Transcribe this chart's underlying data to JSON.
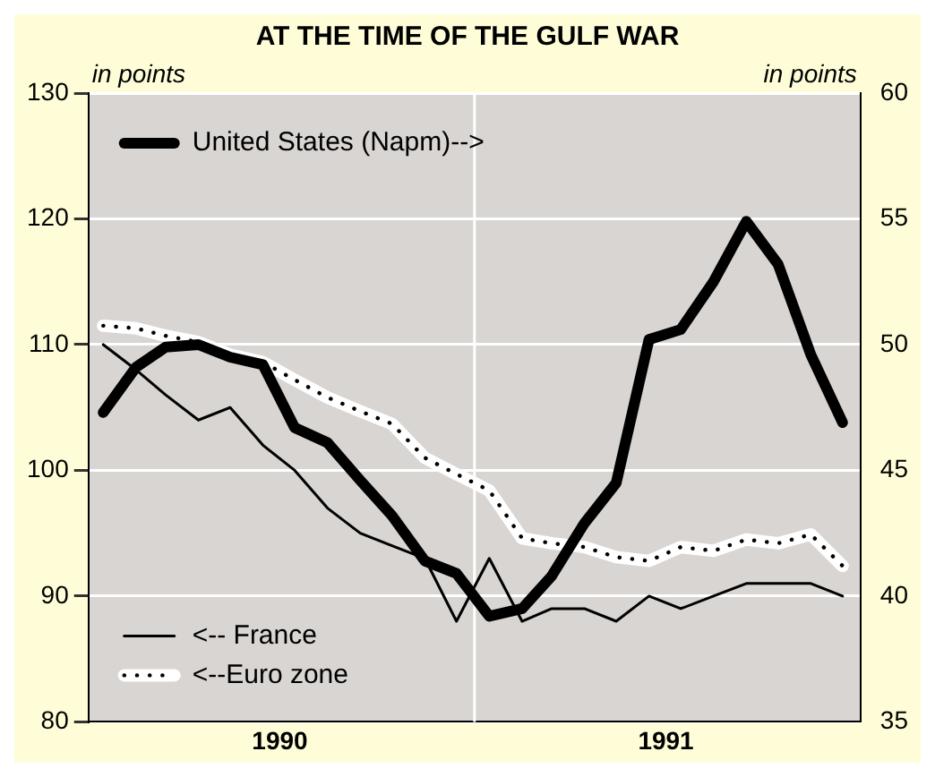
{
  "chart_data": {
    "type": "line",
    "title": "AT THE TIME OF THE GULF WAR",
    "ylabel": "in points",
    "y2label": "in points",
    "x": [
      "1990-01-15",
      "1990-02-15",
      "1990-03-15",
      "1990-04-15",
      "1990-05-15",
      "1990-06-15",
      "1990-07-15",
      "1990-08-15",
      "1990-09-15",
      "1990-10-15",
      "1990-11-15",
      "1990-12-15",
      "1991-01-15",
      "1991-02-15",
      "1991-03-15",
      "1991-04-15",
      "1991-05-15",
      "1991-06-15",
      "1991-07-15",
      "1991-08-15",
      "1991-09-15",
      "1991-10-15",
      "1991-11-15",
      "1991-12-15"
    ],
    "series": [
      {
        "name": "United States (Napm)-->",
        "color": "#000000",
        "axis": "y2",
        "line_style": "solid",
        "values": [
          47.3,
          49.1,
          49.9,
          50.0,
          49.5,
          49.2,
          46.7,
          46.1,
          44.6,
          43.2,
          41.4,
          40.9,
          39.2,
          39.5,
          40.8,
          42.9,
          44.5,
          50.2,
          50.6,
          52.5,
          54.9,
          53.2,
          49.6,
          46.9
        ]
      },
      {
        "name": "<-- France",
        "color": "#000000",
        "line_style": "solid",
        "values": [
          110,
          108,
          106,
          104,
          105,
          102,
          100,
          97,
          95,
          94,
          93,
          88,
          93,
          88,
          89,
          89,
          88,
          90,
          89,
          90,
          91,
          91,
          91,
          90
        ]
      },
      {
        "name": "<--Euro zone",
        "color": "#000000",
        "line_style": "dotted",
        "values": [
          111.5,
          111.3,
          110.7,
          110.2,
          109.2,
          108.6,
          107.2,
          105.8,
          104.7,
          103.7,
          101,
          99.7,
          98.4,
          94.6,
          94.2,
          93.9,
          93.1,
          92.8,
          93.9,
          93.6,
          94.5,
          94.2,
          94.9,
          92.4
        ]
      }
    ],
    "xlim": [
      "1990-01-01",
      "1992-01-01"
    ],
    "xticks": [
      {
        "value": "1990-07-01",
        "label": "1990"
      },
      {
        "value": "1991-07-01",
        "label": "1991"
      }
    ],
    "ylim": [
      80,
      130
    ],
    "yticks": [
      80,
      90,
      100,
      110,
      120,
      130
    ],
    "y2lim": [
      35,
      60
    ],
    "y2ticks": [
      35,
      40,
      45,
      50,
      55,
      60
    ],
    "ref_lines": [
      {
        "axis": "x",
        "value": "1991-01-01",
        "color": "#ffffff"
      }
    ],
    "grid": "y",
    "legend": "left",
    "marker": "none"
  }
}
